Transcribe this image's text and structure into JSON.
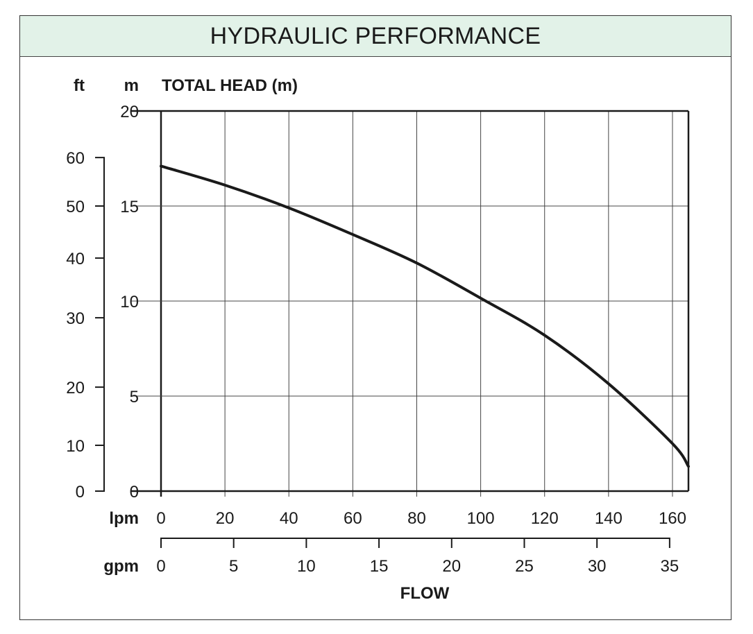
{
  "chart_data": {
    "type": "line",
    "title": "HYDRAULIC PERFORMANCE",
    "ylabel": "TOTAL HEAD (m)",
    "y_unit_m": "m",
    "y_unit_ft": "ft",
    "xlabel": "FLOW",
    "x_unit_lpm": "lpm",
    "x_unit_gpm": "gpm",
    "xlim": [
      0,
      165
    ],
    "ylim": [
      0,
      20
    ],
    "grid": true,
    "x_ticks_lpm": [
      0,
      20,
      40,
      60,
      80,
      100,
      120,
      140,
      160
    ],
    "y_ticks_m": [
      0,
      5,
      10,
      15,
      20
    ],
    "y_ticks_ft": [
      {
        "label": "0",
        "at_m": 0
      },
      {
        "label": "10",
        "at_m": 2.41
      },
      {
        "label": "20",
        "at_m": 5.47
      },
      {
        "label": "30",
        "at_m": 9.12
      },
      {
        "label": "40",
        "at_m": 12.26
      },
      {
        "label": "50",
        "at_m": 15.0
      },
      {
        "label": "60",
        "at_m": 17.55
      }
    ],
    "x_ticks_gpm": [
      0,
      5,
      10,
      15,
      20,
      25,
      30,
      35
    ],
    "gpm_to_lpm": 4.546,
    "series": [
      {
        "name": "Total head",
        "color": "#1a1a1a",
        "x": [
          0,
          20,
          40,
          60,
          80,
          100,
          120,
          140,
          160,
          165
        ],
        "y": [
          17.1,
          16.1,
          14.9,
          13.5,
          12.0,
          10.15,
          8.2,
          5.65,
          2.5,
          1.3
        ]
      }
    ]
  }
}
